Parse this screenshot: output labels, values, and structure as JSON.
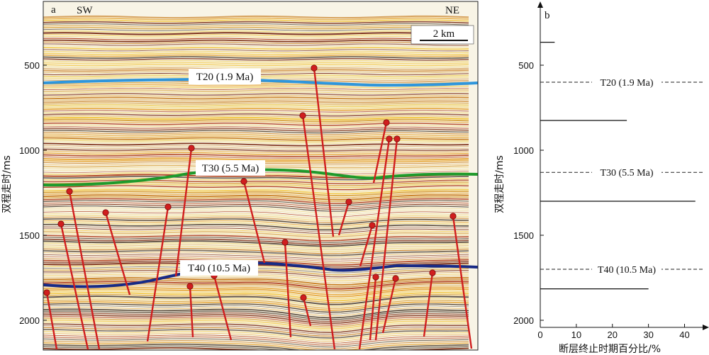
{
  "panel_a": {
    "label": "a",
    "sw_label": "SW",
    "ne_label": "NE",
    "scalebar_label": "2 km",
    "y_axis_title": "双程走时/ms",
    "y_ticks": [
      "500",
      "1000",
      "1500",
      "2000"
    ],
    "horizons": [
      {
        "label": "T20 (1.9 Ma)",
        "color": "#2f96dc"
      },
      {
        "label": "T30 (5.5 Ma)",
        "color": "#1f9a2c"
      },
      {
        "label": "T40 (10.5 Ma)",
        "color": "#172a86"
      }
    ],
    "fault_color": "#d01e1e"
  },
  "panel_b": {
    "label": "b",
    "y_axis_title": "双程走时/ms",
    "x_axis_title": "断层终止时期百分比/%"
  },
  "chart_data": {
    "type": "bar",
    "orientation": "horizontal",
    "xlim": [
      0,
      45
    ],
    "ylim": [
      2000,
      250
    ],
    "x_ticks": [
      0,
      10,
      20,
      30,
      40
    ],
    "y_ticks": [
      500,
      1000,
      1500,
      2000
    ],
    "xlabel": "断层终止时期百分比/%",
    "ylabel": "双程走时/ms",
    "y": [
      365,
      825,
      1300,
      1815
    ],
    "values": [
      4,
      24,
      43,
      30
    ],
    "reference_lines": [
      {
        "label": "T20 (1.9 Ma)",
        "y": 600
      },
      {
        "label": "T30 (5.5 Ma)",
        "y": 1130
      },
      {
        "label": "T40 (10.5 Ma)",
        "y": 1700
      }
    ]
  }
}
